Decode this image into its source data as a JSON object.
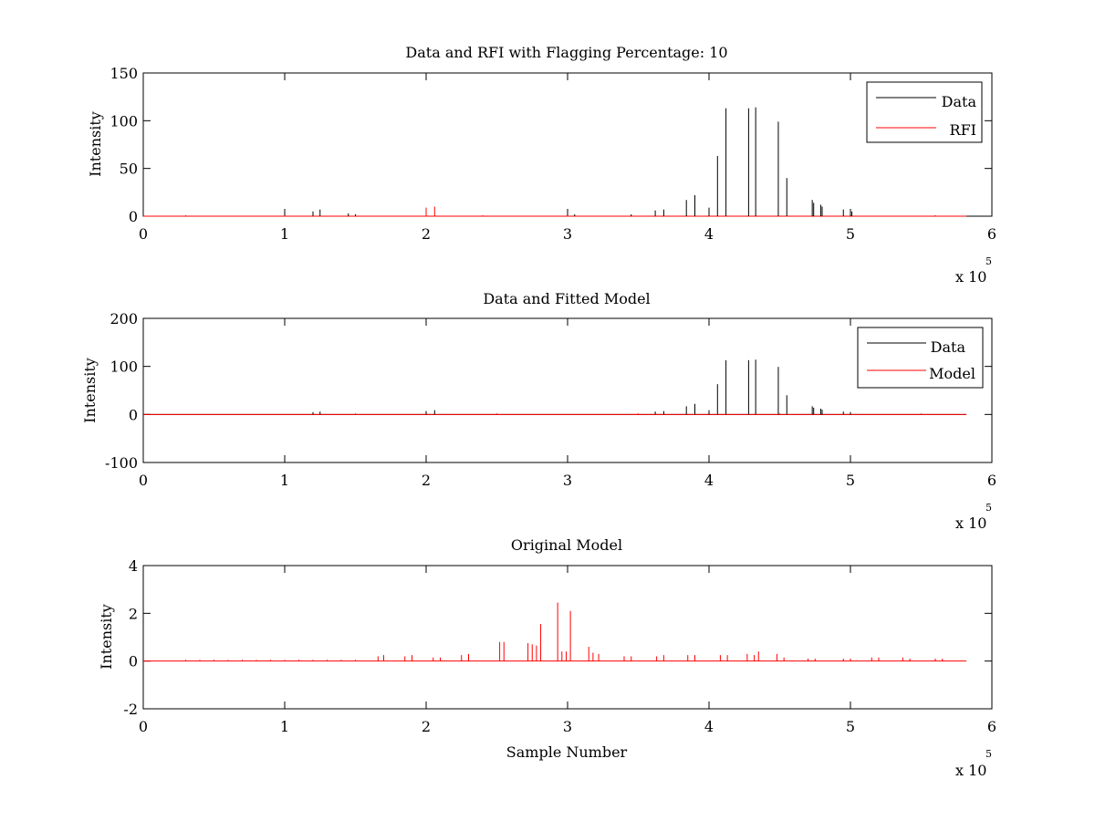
{
  "figure": {
    "background": "#ffffff",
    "axes_color": "#000000"
  },
  "chart_data": [
    {
      "type": "line",
      "title": "Data and RFI with Flagging Percentage: 10",
      "xlabel": "",
      "ylabel": "Intensity",
      "xlim": [
        0,
        600000
      ],
      "ylim": [
        0,
        150
      ],
      "x_ticks": [
        0,
        100000,
        200000,
        300000,
        400000,
        500000,
        600000
      ],
      "x_tick_labels": [
        "0",
        "1",
        "2",
        "3",
        "4",
        "5",
        "6"
      ],
      "y_ticks": [
        0,
        50,
        100,
        150
      ],
      "y_tick_labels": [
        "0",
        "50",
        "100",
        "150"
      ],
      "x_exponent": {
        "base": "x 10",
        "power": "5"
      },
      "baseline": 0,
      "data_end": 582000,
      "legend": {
        "position": "top-right",
        "entries": [
          "Data",
          "RFI"
        ]
      },
      "series": [
        {
          "name": "Data",
          "color": "#000000",
          "spikes": [
            {
              "x": 120000,
              "y": 5
            },
            {
              "x": 125000,
              "y": 7
            },
            {
              "x": 145000,
              "y": 3
            },
            {
              "x": 150000,
              "y": 2
            },
            {
              "x": 305000,
              "y": 2
            },
            {
              "x": 345000,
              "y": 2
            },
            {
              "x": 362000,
              "y": 6
            },
            {
              "x": 368000,
              "y": 7
            },
            {
              "x": 384000,
              "y": 17
            },
            {
              "x": 390000,
              "y": 22
            },
            {
              "x": 400000,
              "y": 9
            },
            {
              "x": 406000,
              "y": 63
            },
            {
              "x": 412000,
              "y": 113
            },
            {
              "x": 428000,
              "y": 113
            },
            {
              "x": 433000,
              "y": 114
            },
            {
              "x": 449000,
              "y": 99
            },
            {
              "x": 455000,
              "y": 40
            },
            {
              "x": 473000,
              "y": 17
            },
            {
              "x": 474000,
              "y": 14
            },
            {
              "x": 479000,
              "y": 12
            },
            {
              "x": 480000,
              "y": 10
            },
            {
              "x": 495000,
              "y": 7
            },
            {
              "x": 500000,
              "y": 7
            },
            {
              "x": 501000,
              "y": 5
            }
          ]
        },
        {
          "name": "RFI",
          "color": "#ff0000",
          "spikes": [
            {
              "x": 200000,
              "y": 9
            },
            {
              "x": 206000,
              "y": 10
            },
            {
              "x": 30000,
              "y": 1
            },
            {
              "x": 240000,
              "y": 1
            },
            {
              "x": 560000,
              "y": 1
            }
          ]
        }
      ]
    },
    {
      "type": "line",
      "title": "Data and Fitted Model",
      "xlabel": "",
      "ylabel": "Intensity",
      "xlim": [
        0,
        600000
      ],
      "ylim": [
        -100,
        200
      ],
      "x_ticks": [
        0,
        100000,
        200000,
        300000,
        400000,
        500000,
        600000
      ],
      "x_tick_labels": [
        "0",
        "1",
        "2",
        "3",
        "4",
        "5",
        "6"
      ],
      "y_ticks": [
        -100,
        0,
        100,
        200
      ],
      "y_tick_labels": [
        "-100",
        "0",
        "100",
        "200"
      ],
      "x_exponent": {
        "base": "x 10",
        "power": "5"
      },
      "baseline": 0,
      "data_end": 582000,
      "legend": {
        "position": "top-right",
        "entries": [
          "Data",
          "Model"
        ]
      },
      "series": [
        {
          "name": "Data",
          "color": "#000000",
          "spikes": [
            {
              "x": 120000,
              "y": 5
            },
            {
              "x": 125000,
              "y": 6
            },
            {
              "x": 200000,
              "y": 7
            },
            {
              "x": 206000,
              "y": 9
            },
            {
              "x": 362000,
              "y": 6
            },
            {
              "x": 368000,
              "y": 7
            },
            {
              "x": 384000,
              "y": 17
            },
            {
              "x": 390000,
              "y": 22
            },
            {
              "x": 400000,
              "y": 9
            },
            {
              "x": 406000,
              "y": 63
            },
            {
              "x": 412000,
              "y": 113
            },
            {
              "x": 428000,
              "y": 113
            },
            {
              "x": 433000,
              "y": 114
            },
            {
              "x": 449000,
              "y": 99
            },
            {
              "x": 455000,
              "y": 40
            },
            {
              "x": 473000,
              "y": 17
            },
            {
              "x": 474000,
              "y": 14
            },
            {
              "x": 479000,
              "y": 12
            },
            {
              "x": 480000,
              "y": 10
            },
            {
              "x": 495000,
              "y": 6
            },
            {
              "x": 500000,
              "y": 5
            }
          ]
        },
        {
          "name": "Model",
          "color": "#ff0000",
          "spikes": [
            {
              "x": 150000,
              "y": 2
            },
            {
              "x": 250000,
              "y": 2
            },
            {
              "x": 350000,
              "y": 2
            },
            {
              "x": 450000,
              "y": 2
            },
            {
              "x": 550000,
              "y": 2
            }
          ]
        }
      ]
    },
    {
      "type": "line",
      "title": "Original Model",
      "xlabel": "Sample Number",
      "ylabel": "Intensity",
      "xlim": [
        0,
        600000
      ],
      "ylim": [
        -2,
        4
      ],
      "x_ticks": [
        0,
        100000,
        200000,
        300000,
        400000,
        500000,
        600000
      ],
      "x_tick_labels": [
        "0",
        "1",
        "2",
        "3",
        "4",
        "5",
        "6"
      ],
      "y_ticks": [
        -2,
        0,
        2,
        4
      ],
      "y_tick_labels": [
        "-2",
        "0",
        "2",
        "4"
      ],
      "x_exponent": {
        "base": "x 10",
        "power": "5"
      },
      "baseline": 0,
      "data_end": 582000,
      "legend": null,
      "series": [
        {
          "name": "",
          "color": "#ff0000",
          "spikes": [
            {
              "x": 30000,
              "y": 0.05
            },
            {
              "x": 40000,
              "y": 0.05
            },
            {
              "x": 50000,
              "y": 0.05
            },
            {
              "x": 60000,
              "y": 0.05
            },
            {
              "x": 70000,
              "y": 0.05
            },
            {
              "x": 80000,
              "y": 0.05
            },
            {
              "x": 90000,
              "y": 0.05
            },
            {
              "x": 100000,
              "y": 0.05
            },
            {
              "x": 110000,
              "y": 0.05
            },
            {
              "x": 120000,
              "y": 0.05
            },
            {
              "x": 130000,
              "y": 0.05
            },
            {
              "x": 140000,
              "y": 0.05
            },
            {
              "x": 150000,
              "y": 0.05
            },
            {
              "x": 166000,
              "y": 0.2
            },
            {
              "x": 170000,
              "y": 0.25
            },
            {
              "x": 185000,
              "y": 0.2
            },
            {
              "x": 190000,
              "y": 0.25
            },
            {
              "x": 205000,
              "y": 0.15
            },
            {
              "x": 210000,
              "y": 0.15
            },
            {
              "x": 225000,
              "y": 0.25
            },
            {
              "x": 230000,
              "y": 0.3
            },
            {
              "x": 252000,
              "y": 0.8
            },
            {
              "x": 255000,
              "y": 0.8
            },
            {
              "x": 272000,
              "y": 0.75
            },
            {
              "x": 275000,
              "y": 0.7
            },
            {
              "x": 278000,
              "y": 0.65
            },
            {
              "x": 281000,
              "y": 1.55
            },
            {
              "x": 293000,
              "y": 2.45
            },
            {
              "x": 296000,
              "y": 0.4
            },
            {
              "x": 299000,
              "y": 0.4
            },
            {
              "x": 302000,
              "y": 2.1
            },
            {
              "x": 315000,
              "y": 0.6
            },
            {
              "x": 318000,
              "y": 0.35
            },
            {
              "x": 322000,
              "y": 0.3
            },
            {
              "x": 340000,
              "y": 0.2
            },
            {
              "x": 345000,
              "y": 0.2
            },
            {
              "x": 363000,
              "y": 0.2
            },
            {
              "x": 368000,
              "y": 0.25
            },
            {
              "x": 385000,
              "y": 0.25
            },
            {
              "x": 390000,
              "y": 0.25
            },
            {
              "x": 408000,
              "y": 0.25
            },
            {
              "x": 413000,
              "y": 0.25
            },
            {
              "x": 427000,
              "y": 0.3
            },
            {
              "x": 432000,
              "y": 0.25
            },
            {
              "x": 435000,
              "y": 0.4
            },
            {
              "x": 448000,
              "y": 0.3
            },
            {
              "x": 453000,
              "y": 0.15
            },
            {
              "x": 470000,
              "y": 0.1
            },
            {
              "x": 475000,
              "y": 0.1
            },
            {
              "x": 495000,
              "y": 0.1
            },
            {
              "x": 500000,
              "y": 0.1
            },
            {
              "x": 515000,
              "y": 0.15
            },
            {
              "x": 520000,
              "y": 0.15
            },
            {
              "x": 537000,
              "y": 0.15
            },
            {
              "x": 542000,
              "y": 0.1
            },
            {
              "x": 560000,
              "y": 0.1
            },
            {
              "x": 565000,
              "y": 0.1
            }
          ]
        }
      ]
    }
  ]
}
